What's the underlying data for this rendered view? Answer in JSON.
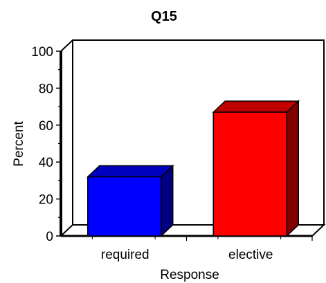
{
  "chart_data": {
    "type": "bar",
    "title": "Q15",
    "xlabel": "Response",
    "ylabel": "Percent",
    "categories": [
      "required",
      "elective"
    ],
    "values": [
      32,
      67
    ],
    "colors": [
      "#0000ff",
      "#ff0000"
    ],
    "ylim": [
      0,
      100
    ],
    "yticks": [
      "0",
      "20",
      "40",
      "60",
      "80",
      "100"
    ],
    "grid": false,
    "legend": "none",
    "style": "3d"
  }
}
